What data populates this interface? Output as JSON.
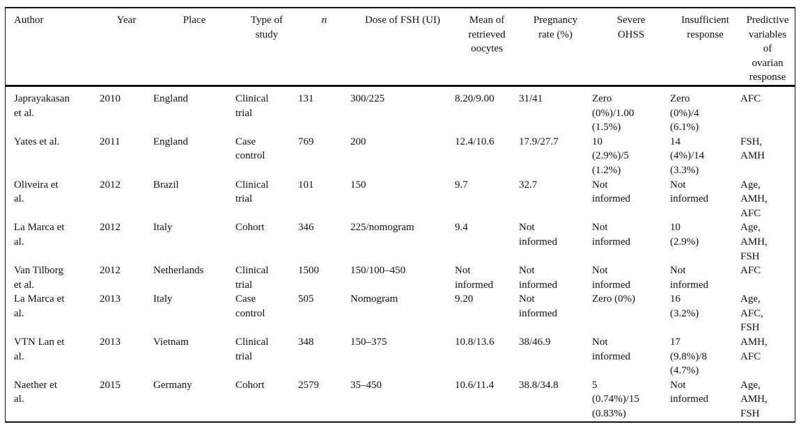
{
  "table": {
    "headers": [
      "Author",
      "Year",
      "Place",
      "Type of\nstudy",
      "n",
      "Dose of FSH (UI)",
      "Mean of\nretrieved\noocytes",
      "Pregnancy\nrate (%)",
      "Severe\nOHSS",
      "Insufficient\nresponse",
      "Predictive\nvariables\nof\novarian\nresponse"
    ],
    "rows": [
      [
        "Japrayakasan\net al.",
        "2010",
        "England",
        "Clinical\ntrial",
        "131",
        "300/225",
        "8.20/9.00",
        "31/41",
        "Zero\n(0%)/1.00\n(1.5%)",
        "Zero\n(0%)/4\n(6.1%)",
        "AFC"
      ],
      [
        "Yates et al.",
        "2011",
        "England",
        "Case\ncontrol",
        "769",
        "200",
        "12.4/10.6",
        "17.9/27.7",
        "10\n(2.9%)/5\n(1.2%)",
        "14\n(4%)/14\n(3.3%)",
        "FSH,\nAMH"
      ],
      [
        "Oliveira et\nal.",
        "2012",
        "Brazil",
        "Clinical\ntrial",
        "101",
        "150",
        "9.7",
        "32.7",
        "Not\ninformed",
        "Not\ninformed",
        "Age,\nAMH,\nAFC"
      ],
      [
        "La Marca et\nal.",
        "2012",
        "Italy",
        "Cohort",
        "346",
        "225/nomogram",
        "9.4",
        "Not\ninformed",
        "Not\ninformed",
        "10\n(2.9%)",
        "Age,\nAMH,\nFSH"
      ],
      [
        "Van Tilborg\net al.",
        "2012",
        "Netherlands",
        "Clinical\ntrial",
        "1500",
        "150/100–450",
        "Not\ninformed",
        "Not\ninformed",
        "Not\ninformed",
        "Not\ninformed",
        "AFC"
      ],
      [
        "La Marca et\nal.",
        "2013",
        "Italy",
        "Case\ncontrol",
        "505",
        "Nomogram",
        "9.20",
        "Not\ninformed",
        "Zero (0%)",
        "16\n(3.2%)",
        "Age,\nAFC,\nFSH"
      ],
      [
        "VTN Lan et\nal.",
        "2013",
        "Vietnam",
        "Clinical\ntrial",
        "348",
        "150–375",
        "10.8/13.6",
        "38/46.9",
        "Not\ninformed",
        "17\n(9.8%)/8\n(4.7%)",
        "AMH,\nAFC"
      ],
      [
        "Naether et\nal.",
        "2015",
        "Germany",
        "Cohort",
        "2579",
        "35–450",
        "10.6/11.4",
        "38.8/34.8",
        "5\n(0.74%)/15\n(0.83%)",
        "Not\ninformed",
        "Age,\nAMH,\nFSH"
      ]
    ]
  }
}
